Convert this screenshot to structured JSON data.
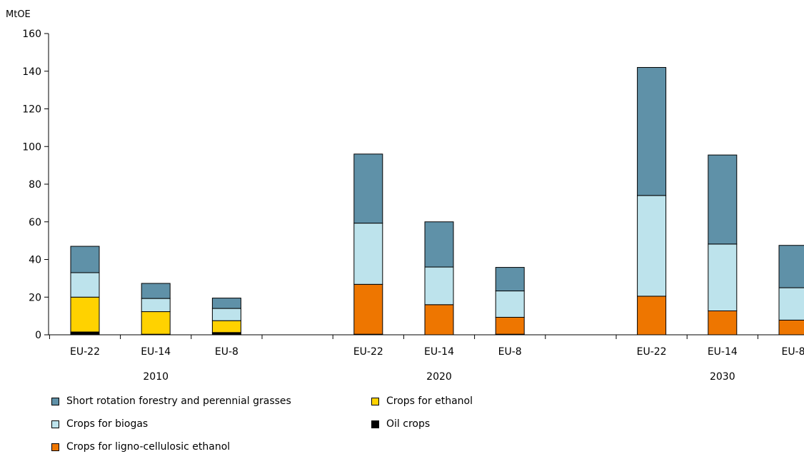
{
  "chart_data": {
    "type": "bar",
    "stacked": true,
    "ylabel": "MtOE",
    "ylim": [
      0,
      160
    ],
    "yticks": [
      0,
      20,
      40,
      60,
      80,
      100,
      120,
      140,
      160
    ],
    "grid": false,
    "legend_position": "bottom",
    "groups": [
      {
        "label": "2010",
        "categories": [
          "EU-22",
          "EU-14",
          "EU-8"
        ]
      },
      {
        "label": "2020",
        "categories": [
          "EU-22",
          "EU-14",
          "EU-8"
        ]
      },
      {
        "label": "2030",
        "categories": [
          "EU-22",
          "EU-14",
          "EU-8"
        ]
      }
    ],
    "series": [
      {
        "name": "Oil crops",
        "color": "#000000",
        "values": [
          1.5,
          0.3,
          1.2,
          0.3,
          0,
          0.3,
          0,
          0,
          0
        ]
      },
      {
        "name": "Crops for ethanol",
        "color": "#ffd200",
        "values": [
          18.5,
          12,
          6.3,
          0,
          0,
          0,
          0,
          0,
          0
        ]
      },
      {
        "name": "Crops for ligno-cellulosic ethanol",
        "color": "#ee7600",
        "values": [
          0,
          0,
          0,
          26.5,
          16,
          9,
          20.5,
          12.7,
          7.8
        ]
      },
      {
        "name": "Crops for biogas",
        "color": "#bde3ec",
        "values": [
          13,
          7,
          6.5,
          32.5,
          20,
          14,
          53.5,
          35.5,
          17.2
        ]
      },
      {
        "name": "Short rotation forestry and perennial grasses",
        "color": "#5f91a8",
        "values": [
          14,
          8,
          5.5,
          36.7,
          24,
          12.5,
          68,
          47.3,
          22.5
        ]
      }
    ],
    "legend": [
      {
        "name": "Short rotation forestry and perennial grasses",
        "color": "#5f91a8"
      },
      {
        "name": "Crops for ethanol",
        "color": "#ffd200"
      },
      {
        "name": "Crops for biogas",
        "color": "#bde3ec"
      },
      {
        "name": "Oil crops",
        "color": "#000000"
      },
      {
        "name": "Crops for ligno-cellulosic ethanol",
        "color": "#ee7600"
      }
    ]
  }
}
